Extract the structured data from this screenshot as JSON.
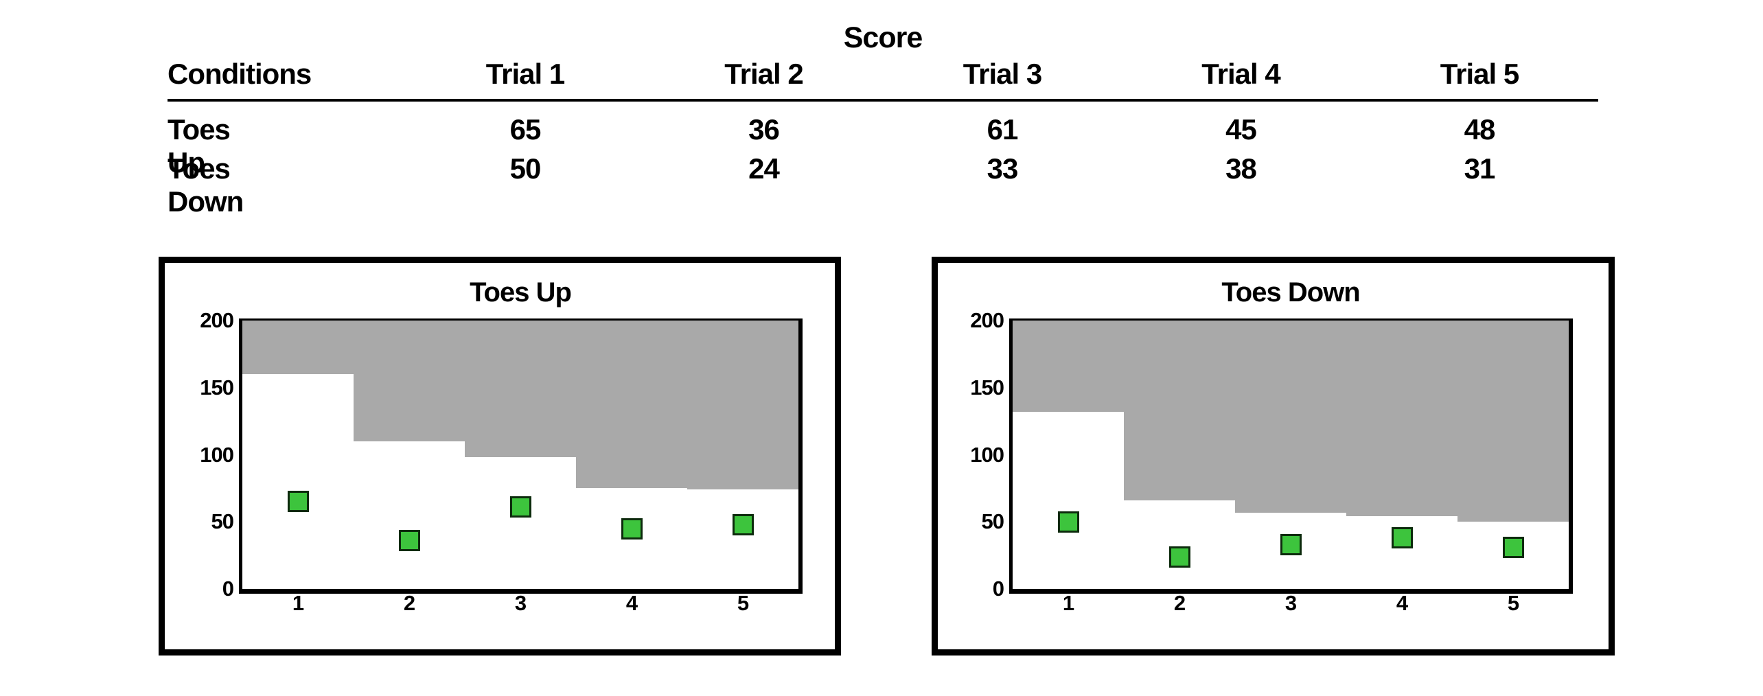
{
  "table": {
    "title": "Score",
    "col_header_left": "Conditions",
    "col_headers": [
      "Trial 1",
      "Trial 2",
      "Trial 3",
      "Trial 4",
      "Trial 5"
    ],
    "rows": [
      {
        "label": "Toes Up",
        "values": [
          65,
          36,
          61,
          45,
          48
        ]
      },
      {
        "label": "Toes Down",
        "values": [
          50,
          24,
          33,
          38,
          31
        ]
      }
    ]
  },
  "chart_data": [
    {
      "type": "scatter",
      "title": "Toes Up",
      "categories": [
        1,
        2,
        3,
        4,
        5
      ],
      "series": [
        {
          "name": "Trial score (green square marker)",
          "values": [
            65,
            36,
            61,
            45,
            48
          ]
        },
        {
          "name": "Gray region lower boundary (region shaded down from 200)",
          "values": [
            160,
            110,
            98,
            75,
            74
          ]
        }
      ],
      "xlabel": "",
      "ylabel": "",
      "ylim": [
        0,
        200
      ],
      "yticks": [
        0,
        50,
        100,
        150,
        200
      ],
      "grid": false,
      "legend": "none",
      "marker": "square"
    },
    {
      "type": "scatter",
      "title": "Toes Down",
      "categories": [
        1,
        2,
        3,
        4,
        5
      ],
      "series": [
        {
          "name": "Trial score (green square marker)",
          "values": [
            50,
            24,
            33,
            38,
            31
          ]
        },
        {
          "name": "Gray region lower boundary (region shaded down from 200)",
          "values": [
            132,
            66,
            57,
            54,
            50
          ]
        }
      ],
      "xlabel": "",
      "ylabel": "",
      "ylim": [
        0,
        200
      ],
      "yticks": [
        0,
        50,
        100,
        150,
        200
      ],
      "grid": false,
      "legend": "none",
      "marker": "square"
    }
  ],
  "colors": {
    "band_gray": "#a9a9a9",
    "marker_green": "#3dc43d",
    "marker_edge": "#0d2b0d",
    "text": "#000000",
    "background": "#ffffff"
  }
}
